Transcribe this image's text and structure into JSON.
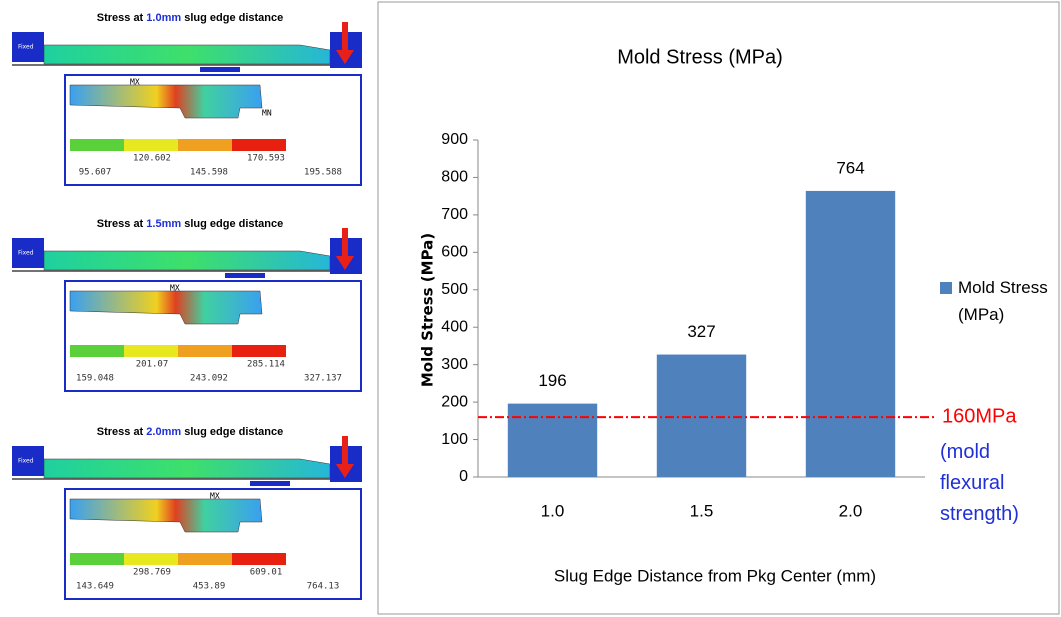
{
  "chart_data": {
    "type": "bar",
    "title": "Mold Stress (MPa)",
    "x_label": "Slug Edge Distance from Pkg Center (mm)",
    "y_label": "Mold Stress (MPa)",
    "categories": [
      "1.0",
      "1.5",
      "2.0"
    ],
    "series": [
      {
        "name": "Mold Stress (MPa)",
        "color": "#4f81bd",
        "values": [
          196,
          327,
          764
        ]
      }
    ],
    "ylim": [
      0,
      900
    ],
    "yticks": [
      0,
      100,
      200,
      300,
      400,
      500,
      600,
      700,
      800,
      900
    ],
    "legend": "right",
    "reference_line": {
      "value": 160,
      "label": "160MPa",
      "note": "(mold flexural strength)",
      "color": "#ff0000"
    }
  },
  "panels": [
    {
      "title_prefix": "Stress at",
      "title_value": "1.0mm",
      "title_suffix": "slug edge distance",
      "fixed": "Fixed",
      "max_label": "MX",
      "min_label": "MN",
      "legend": [
        "95.607",
        "120.602",
        "145.598",
        "170.593",
        "195.588"
      ]
    },
    {
      "title_prefix": "Stress at",
      "title_value": "1.5mm",
      "title_suffix": "slug edge distance",
      "fixed": "Fixed",
      "max_label": "MX",
      "legend": [
        "159.048",
        "201.07",
        "243.092",
        "285.114",
        "327.137"
      ]
    },
    {
      "title_prefix": "Stress at",
      "title_value": "2.0mm",
      "title_suffix": "slug edge distance",
      "fixed": "Fixed",
      "max_label": "MX",
      "legend": [
        "143.649",
        "298.769",
        "453.89",
        "609.01",
        "764.13"
      ]
    }
  ]
}
